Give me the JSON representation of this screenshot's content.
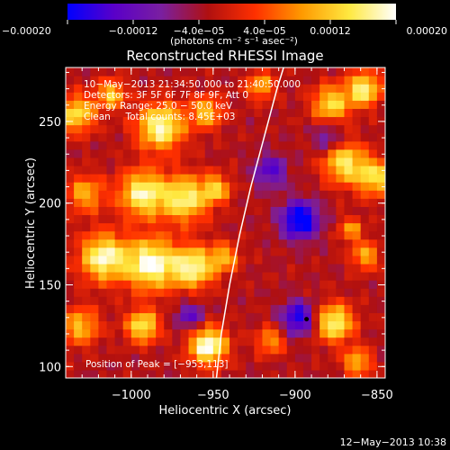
{
  "chart_data": {
    "type": "heatmap",
    "title": "Reconstructed RHESSI Image",
    "xlabel": "Heliocentric X (arcsec)",
    "ylabel": "Heliocentric Y (arcsec)",
    "xlim": [
      -1040,
      -845
    ],
    "ylim": [
      93,
      283
    ],
    "x_ticks": [
      -1000,
      -950,
      -900,
      -850
    ],
    "x_tick_labels": [
      "−1000",
      "−950",
      "−900",
      "−850"
    ],
    "y_ticks": [
      100,
      150,
      200,
      250
    ],
    "y_tick_labels": [
      "100",
      "150",
      "200",
      "250"
    ],
    "colorbar": {
      "range": [
        -0.0002,
        0.0002
      ],
      "ticks": [
        -0.0002,
        -0.00012,
        -4e-05,
        4e-05,
        0.00012,
        0.0002
      ],
      "tick_labels": [
        "−0.00020",
        "−0.00012",
        "−4.0e−05",
        "4.0e−05",
        "0.00012",
        "0.00020"
      ],
      "unit_label": "(photons cm⁻² s⁻¹ asec⁻²)",
      "colormap": [
        "#0000ff",
        "#5a00c8",
        "#7a1fa0",
        "#b01010",
        "#ff3000",
        "#ff9a00",
        "#ffe840",
        "#ffffff"
      ]
    },
    "annotations": [
      "10−May−2013 21:34:50.000 to 21:40:50.000",
      "Detectors: 3F 5F 6F 7F 8F 9F, Att 0",
      "Energy Range: 25.0 − 50.0 keV",
      "Clean     Total counts: 8.45E+03"
    ],
    "peak_label": "Position of Peak = [−953,113]",
    "peak_position": [
      -953,
      113
    ],
    "marker_point": [
      -893,
      129
    ],
    "limb_curve": [
      [
        -948,
        93
      ],
      [
        -945,
        120
      ],
      [
        -940,
        150
      ],
      [
        -934,
        180
      ],
      [
        -927,
        210
      ],
      [
        -919,
        240
      ],
      [
        -911,
        270
      ],
      [
        -907,
        283
      ]
    ],
    "hotspots": [
      [
        -1033,
        255,
        8,
        0.72
      ],
      [
        -1012,
        267,
        6,
        0.65
      ],
      [
        -982,
        247,
        10,
        0.9
      ],
      [
        -954,
        256,
        7,
        0.6
      ],
      [
        -921,
        272,
        6,
        0.55
      ],
      [
        -878,
        261,
        8,
        0.7
      ],
      [
        -858,
        270,
        7,
        0.85
      ],
      [
        -1028,
        206,
        8,
        0.55
      ],
      [
        -993,
        206,
        10,
        0.85
      ],
      [
        -967,
        203,
        10,
        0.8
      ],
      [
        -948,
        209,
        6,
        0.6
      ],
      [
        -870,
        225,
        9,
        0.75
      ],
      [
        -851,
        216,
        8,
        0.7
      ],
      [
        -1017,
        167,
        10,
        0.9
      ],
      [
        -988,
        163,
        11,
        0.95
      ],
      [
        -962,
        161,
        9,
        0.85
      ],
      [
        -943,
        167,
        6,
        0.55
      ],
      [
        -857,
        168,
        6,
        0.55
      ],
      [
        -1031,
        125,
        8,
        0.6
      ],
      [
        -993,
        125,
        7,
        0.78
      ],
      [
        -953,
        113,
        8,
        1.0
      ],
      [
        -915,
        116,
        6,
        0.5
      ],
      [
        -876,
        127,
        8,
        0.85
      ],
      [
        -862,
        103,
        6,
        0.6
      ],
      [
        -866,
        184,
        5,
        0.5
      ]
    ],
    "negative_spots": [
      [
        -897,
        190,
        8,
        0.85
      ],
      [
        -898,
        130,
        7,
        0.7
      ],
      [
        -964,
        131,
        6,
        0.45
      ],
      [
        -880,
        240,
        6,
        0.4
      ],
      [
        -915,
        220,
        7,
        0.5
      ]
    ]
  },
  "footer_timestamp": "12−May−2013 10:38"
}
